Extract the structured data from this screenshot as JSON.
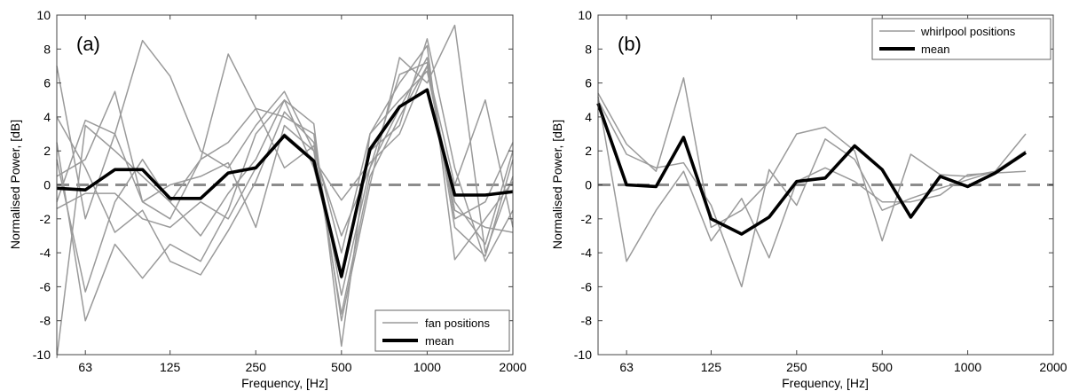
{
  "chart_data": [
    {
      "type": "line",
      "panel_label": "(a)",
      "xlabel": "Frequency, [Hz]",
      "ylabel": "Normalised Power, [dB]",
      "x_scale": "log",
      "x": [
        50,
        63,
        80,
        100,
        125,
        160,
        200,
        250,
        315,
        400,
        500,
        630,
        800,
        1000,
        1250,
        1600,
        2000
      ],
      "xticks": [
        63,
        125,
        250,
        500,
        1000,
        2000
      ],
      "xticklabels": [
        "63",
        "125",
        "250",
        "500",
        "1000",
        "2000"
      ],
      "xlim": [
        50,
        2000
      ],
      "ylim": [
        -10,
        10
      ],
      "yticks": [
        -10,
        -8,
        -6,
        -4,
        -2,
        0,
        2,
        4,
        6,
        8,
        10
      ],
      "yticklabels": [
        "-10",
        "-8",
        "-6",
        "-4",
        "-2",
        "0",
        "2",
        "4",
        "6",
        "8",
        "10"
      ],
      "reference_line": 0,
      "legend": {
        "position": "bottom-right",
        "entries": [
          "fan positions",
          "mean"
        ]
      },
      "series": [
        {
          "name": "fan positions",
          "style": "grey",
          "values": [
            7,
            -2,
            3,
            8.5,
            6.4,
            2,
            1,
            3.5,
            5.5,
            2,
            -3,
            1,
            4.5,
            7.5,
            -2,
            -1,
            2.5
          ]
        },
        {
          "name": "fan positions",
          "style": "grey",
          "values": [
            1.5,
            -6.3,
            -1,
            1.5,
            -1,
            1.5,
            7.7,
            4.5,
            4,
            3,
            -8,
            0,
            7.5,
            6,
            9.4,
            -4,
            0.5
          ]
        },
        {
          "name": "fan positions",
          "style": "grey",
          "values": [
            -10.2,
            3.5,
            2,
            0.5,
            -1,
            -3,
            -0.5,
            1.5,
            5,
            1,
            -5.5,
            2,
            3.5,
            8.6,
            1,
            -4.5,
            -1.5
          ]
        },
        {
          "name": "fan positions",
          "style": "grey",
          "values": [
            4,
            1,
            -2.8,
            -1.5,
            -4.5,
            -5.3,
            -2.7,
            0.2,
            4.3,
            2.5,
            -6.5,
            1,
            6.5,
            7.2,
            -2.5,
            -4.2,
            1.5
          ]
        },
        {
          "name": "fan positions",
          "style": "grey",
          "values": [
            2.5,
            -8,
            -3.5,
            -5.5,
            -3.5,
            -4.5,
            -1.5,
            3,
            5,
            3.6,
            -9.5,
            3,
            6,
            8.2,
            -4.4,
            -2,
            0.2
          ]
        },
        {
          "name": "fan positions",
          "style": "grey",
          "values": [
            -1,
            3.8,
            3,
            -1,
            0,
            0.5,
            1.3,
            -2.5,
            3.5,
            2,
            -7.6,
            0.5,
            4,
            7,
            0,
            5,
            -2.5
          ]
        },
        {
          "name": "fan positions",
          "style": "grey",
          "values": [
            0.5,
            1.5,
            5.5,
            -1,
            -2,
            1.5,
            2.5,
            4.5,
            1,
            2.3,
            -4,
            3,
            5,
            6.7,
            -1,
            -3.5,
            2
          ]
        },
        {
          "name": "fan positions",
          "style": "grey",
          "values": [
            -1.4,
            -0.5,
            -0.5,
            -2,
            -2.5,
            -1,
            -2,
            1,
            3,
            1.5,
            -0.9,
            1.3,
            3,
            7,
            -1.5,
            -2.5,
            -2.8
          ]
        },
        {
          "name": "mean",
          "style": "black",
          "values": [
            -0.2,
            -0.3,
            0.9,
            0.9,
            -0.8,
            -0.8,
            0.7,
            1,
            2.9,
            1.4,
            -5.4,
            2.1,
            4.6,
            5.6,
            -0.6,
            -0.6,
            -0.4
          ]
        }
      ]
    },
    {
      "type": "line",
      "panel_label": "(b)",
      "xlabel": "Frequency, [Hz]",
      "ylabel": "Normalised Power, [dB]",
      "x_scale": "log",
      "x": [
        50,
        63,
        80,
        100,
        125,
        160,
        200,
        250,
        315,
        400,
        500,
        630,
        800,
        1000,
        1250,
        1600
      ],
      "xticks": [
        63,
        125,
        250,
        500,
        1000,
        2000
      ],
      "xticklabels": [
        "63",
        "125",
        "250",
        "500",
        "1000",
        "2000"
      ],
      "xlim": [
        50,
        2000
      ],
      "ylim": [
        -10,
        10
      ],
      "yticks": [
        -10,
        -8,
        -6,
        -4,
        -2,
        0,
        2,
        4,
        6,
        8,
        10
      ],
      "yticklabels": [
        "-10",
        "-8",
        "-6",
        "-4",
        "-2",
        "0",
        "2",
        "4",
        "6",
        "8",
        "10"
      ],
      "reference_line": 0,
      "legend": {
        "position": "top-right",
        "entries": [
          "whirlpool positions",
          "mean"
        ]
      },
      "series": [
        {
          "name": "whirlpool positions",
          "style": "grey",
          "values": [
            5.4,
            2.4,
            0.8,
            6.3,
            -2.5,
            -1.5,
            0.2,
            3.0,
            3.4,
            2.0,
            -3.3,
            1.8,
            0.6,
            0.5,
            0.8,
            3.0
          ]
        },
        {
          "name": "whirlpool positions",
          "style": "grey",
          "values": [
            5.2,
            -4.5,
            -1.5,
            0.8,
            -3.3,
            -0.8,
            -4.3,
            0.2,
            1.0,
            0.2,
            -1.0,
            -1.0,
            -0.6,
            0.6,
            0.7,
            0.8
          ]
        },
        {
          "name": "whirlpool positions",
          "style": "grey",
          "values": [
            5.0,
            1.8,
            1.0,
            1.3,
            -1.2,
            -6.0,
            0.9,
            -1.2,
            2.7,
            1.5,
            -1.5,
            -0.8,
            -0.2,
            0.3,
            0.8,
            2.0
          ]
        },
        {
          "name": "mean",
          "style": "black",
          "values": [
            4.8,
            0.0,
            -0.1,
            2.8,
            -2.0,
            -2.9,
            -1.9,
            0.2,
            0.4,
            2.3,
            0.9,
            -1.9,
            0.5,
            -0.1,
            0.7,
            1.9
          ]
        }
      ]
    }
  ]
}
